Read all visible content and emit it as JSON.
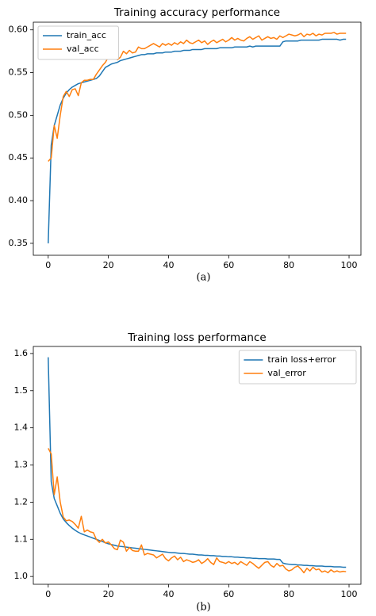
{
  "chart_data": [
    {
      "type": "line",
      "title": "Training accuracy performance",
      "caption": "(a)",
      "legend": "upper left",
      "x": [
        0,
        1,
        2,
        3,
        4,
        5,
        6,
        7,
        8,
        9,
        10,
        11,
        12,
        13,
        14,
        15,
        16,
        17,
        18,
        19,
        20,
        21,
        22,
        23,
        24,
        25,
        26,
        27,
        28,
        29,
        30,
        31,
        32,
        33,
        34,
        35,
        36,
        37,
        38,
        39,
        40,
        41,
        42,
        43,
        44,
        45,
        46,
        47,
        48,
        49,
        50,
        51,
        52,
        53,
        54,
        55,
        56,
        57,
        58,
        59,
        60,
        61,
        62,
        63,
        64,
        65,
        66,
        67,
        68,
        69,
        70,
        71,
        72,
        73,
        74,
        75,
        76,
        77,
        78,
        79,
        80,
        81,
        82,
        83,
        84,
        85,
        86,
        87,
        88,
        89,
        90,
        91,
        92,
        93,
        94,
        95,
        96,
        97,
        98,
        99
      ],
      "series": [
        {
          "name": "train_acc",
          "color": "#1f77b4",
          "values": [
            0.35,
            0.465,
            0.488,
            0.5,
            0.512,
            0.52,
            0.526,
            0.53,
            0.533,
            0.535,
            0.537,
            0.538,
            0.539,
            0.54,
            0.541,
            0.542,
            0.543,
            0.546,
            0.551,
            0.556,
            0.558,
            0.56,
            0.561,
            0.562,
            0.564,
            0.565,
            0.566,
            0.567,
            0.568,
            0.569,
            0.57,
            0.571,
            0.571,
            0.572,
            0.572,
            0.572,
            0.573,
            0.573,
            0.573,
            0.574,
            0.574,
            0.574,
            0.575,
            0.575,
            0.575,
            0.576,
            0.576,
            0.576,
            0.577,
            0.577,
            0.577,
            0.577,
            0.578,
            0.578,
            0.578,
            0.578,
            0.578,
            0.579,
            0.579,
            0.579,
            0.579,
            0.579,
            0.58,
            0.58,
            0.58,
            0.58,
            0.58,
            0.581,
            0.58,
            0.581,
            0.581,
            0.581,
            0.581,
            0.581,
            0.581,
            0.581,
            0.581,
            0.581,
            0.586,
            0.587,
            0.587,
            0.587,
            0.587,
            0.587,
            0.588,
            0.588,
            0.588,
            0.588,
            0.588,
            0.588,
            0.588,
            0.589,
            0.589,
            0.589,
            0.589,
            0.589,
            0.589,
            0.588,
            0.589,
            0.589
          ]
        },
        {
          "name": "val_acc",
          "color": "#ff7f0e",
          "values": [
            0.446,
            0.45,
            0.488,
            0.473,
            0.5,
            0.522,
            0.528,
            0.522,
            0.53,
            0.531,
            0.523,
            0.538,
            0.541,
            0.541,
            0.542,
            0.542,
            0.548,
            0.553,
            0.558,
            0.562,
            0.568,
            0.571,
            0.572,
            0.565,
            0.568,
            0.575,
            0.572,
            0.576,
            0.573,
            0.574,
            0.58,
            0.578,
            0.578,
            0.58,
            0.582,
            0.584,
            0.582,
            0.58,
            0.584,
            0.582,
            0.584,
            0.582,
            0.585,
            0.583,
            0.586,
            0.584,
            0.588,
            0.585,
            0.584,
            0.586,
            0.588,
            0.585,
            0.587,
            0.583,
            0.586,
            0.588,
            0.585,
            0.587,
            0.589,
            0.586,
            0.588,
            0.591,
            0.588,
            0.59,
            0.588,
            0.587,
            0.59,
            0.592,
            0.589,
            0.591,
            0.593,
            0.588,
            0.59,
            0.592,
            0.59,
            0.591,
            0.589,
            0.593,
            0.591,
            0.593,
            0.595,
            0.594,
            0.593,
            0.594,
            0.596,
            0.592,
            0.595,
            0.594,
            0.596,
            0.593,
            0.595,
            0.594,
            0.596,
            0.596,
            0.596,
            0.597,
            0.595,
            0.596,
            0.596,
            0.596
          ]
        }
      ],
      "xlim": [
        -4.95,
        103.95
      ],
      "xticks": [
        0,
        20,
        40,
        60,
        80,
        100
      ],
      "ylim": [
        0.336,
        0.609
      ],
      "yticks": [
        0.35,
        {
          "value": 0.4,
          "label": "0.40"
        },
        0.45,
        {
          "value": 0.5,
          "label": "0.50"
        },
        0.55,
        {
          "value": 0.6,
          "label": "0.60"
        }
      ]
    },
    {
      "type": "line",
      "title": "Training loss performance",
      "caption": "(b)",
      "legend": "upper right",
      "x": [
        0,
        1,
        2,
        3,
        4,
        5,
        6,
        7,
        8,
        9,
        10,
        11,
        12,
        13,
        14,
        15,
        16,
        17,
        18,
        19,
        20,
        21,
        22,
        23,
        24,
        25,
        26,
        27,
        28,
        29,
        30,
        31,
        32,
        33,
        34,
        35,
        36,
        37,
        38,
        39,
        40,
        41,
        42,
        43,
        44,
        45,
        46,
        47,
        48,
        49,
        50,
        51,
        52,
        53,
        54,
        55,
        56,
        57,
        58,
        59,
        60,
        61,
        62,
        63,
        64,
        65,
        66,
        67,
        68,
        69,
        70,
        71,
        72,
        73,
        74,
        75,
        76,
        77,
        78,
        79,
        80,
        81,
        82,
        83,
        84,
        85,
        86,
        87,
        88,
        89,
        90,
        91,
        92,
        93,
        94,
        95,
        96,
        97,
        98,
        99
      ],
      "series": [
        {
          "name": "train loss+error",
          "color": "#1f77b4",
          "values": [
            1.59,
            1.255,
            1.21,
            1.19,
            1.17,
            1.155,
            1.145,
            1.137,
            1.13,
            1.124,
            1.119,
            1.115,
            1.112,
            1.109,
            1.106,
            1.103,
            1.1,
            1.097,
            1.094,
            1.091,
            1.088,
            1.086,
            1.084,
            1.082,
            1.081,
            1.08,
            1.079,
            1.078,
            1.077,
            1.076,
            1.075,
            1.074,
            1.073,
            1.072,
            1.071,
            1.07,
            1.069,
            1.068,
            1.067,
            1.066,
            1.065,
            1.064,
            1.064,
            1.063,
            1.062,
            1.062,
            1.061,
            1.06,
            1.06,
            1.059,
            1.058,
            1.058,
            1.057,
            1.057,
            1.056,
            1.056,
            1.055,
            1.055,
            1.054,
            1.054,
            1.053,
            1.053,
            1.052,
            1.052,
            1.051,
            1.051,
            1.05,
            1.05,
            1.049,
            1.049,
            1.048,
            1.048,
            1.048,
            1.047,
            1.047,
            1.047,
            1.046,
            1.046,
            1.036,
            1.034,
            1.033,
            1.032,
            1.032,
            1.031,
            1.031,
            1.03,
            1.03,
            1.029,
            1.029,
            1.028,
            1.028,
            1.028,
            1.027,
            1.027,
            1.027,
            1.026,
            1.026,
            1.026,
            1.025,
            1.025
          ]
        },
        {
          "name": "val_error",
          "color": "#ff7f0e",
          "values": [
            1.345,
            1.33,
            1.22,
            1.268,
            1.2,
            1.16,
            1.15,
            1.152,
            1.148,
            1.14,
            1.13,
            1.162,
            1.12,
            1.125,
            1.12,
            1.118,
            1.1,
            1.092,
            1.1,
            1.09,
            1.093,
            1.085,
            1.075,
            1.072,
            1.098,
            1.092,
            1.068,
            1.078,
            1.07,
            1.068,
            1.068,
            1.085,
            1.058,
            1.062,
            1.06,
            1.058,
            1.05,
            1.055,
            1.06,
            1.048,
            1.042,
            1.05,
            1.055,
            1.045,
            1.052,
            1.04,
            1.045,
            1.042,
            1.038,
            1.04,
            1.045,
            1.035,
            1.04,
            1.048,
            1.038,
            1.032,
            1.05,
            1.04,
            1.038,
            1.035,
            1.04,
            1.035,
            1.038,
            1.032,
            1.04,
            1.035,
            1.03,
            1.04,
            1.035,
            1.028,
            1.022,
            1.03,
            1.038,
            1.04,
            1.03,
            1.025,
            1.035,
            1.028,
            1.03,
            1.02,
            1.015,
            1.018,
            1.025,
            1.028,
            1.02,
            1.01,
            1.022,
            1.015,
            1.025,
            1.018,
            1.02,
            1.012,
            1.015,
            1.01,
            1.018,
            1.012,
            1.015,
            1.012,
            1.014,
            1.013
          ]
        }
      ],
      "xlim": [
        -4.95,
        103.95
      ],
      "xticks": [
        0,
        20,
        40,
        60,
        80,
        100
      ],
      "ylim": [
        0.979,
        1.619
      ],
      "yticks": [
        {
          "value": 1.0,
          "label": "1.0"
        },
        1.1,
        1.2,
        1.3,
        1.4,
        1.5,
        1.6
      ]
    }
  ]
}
